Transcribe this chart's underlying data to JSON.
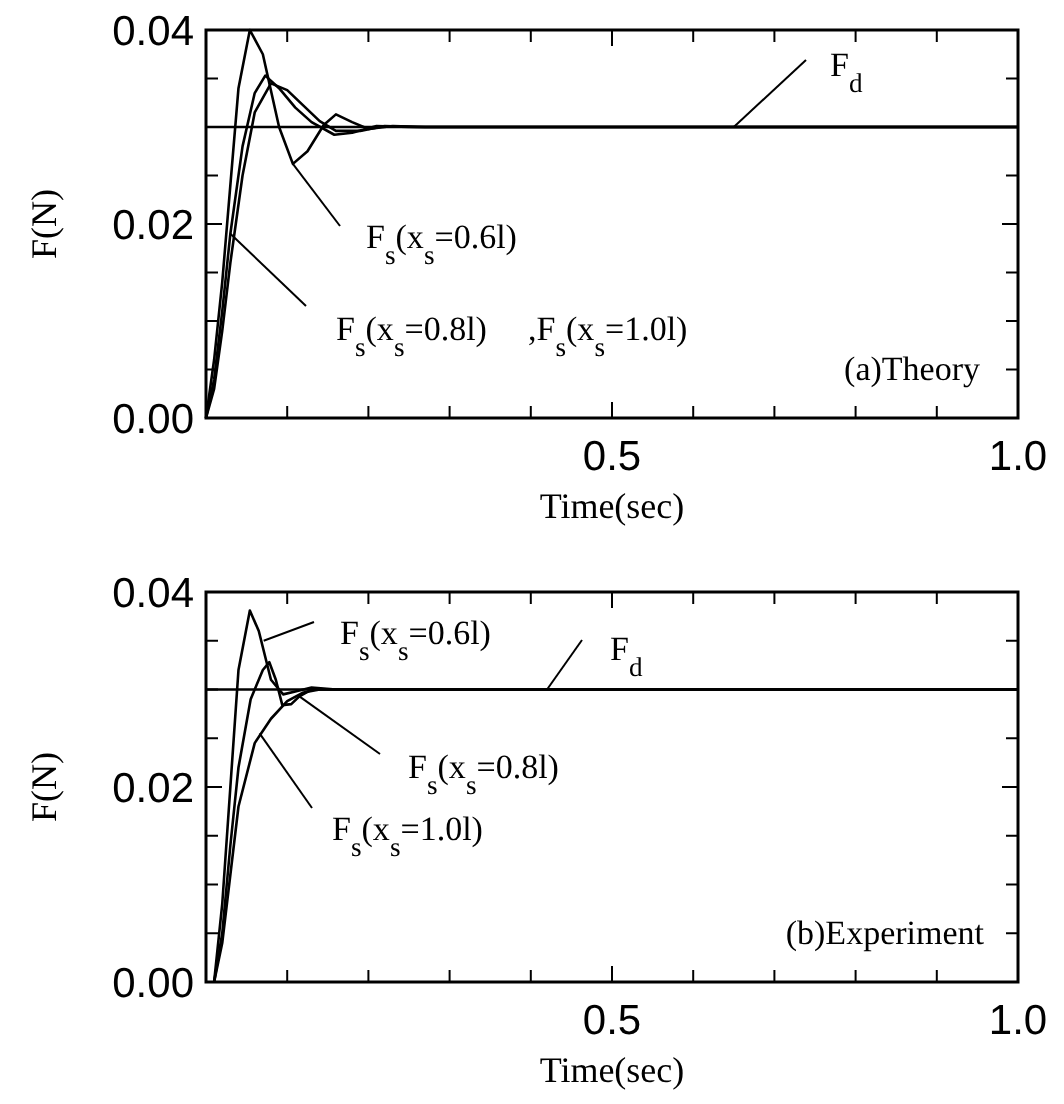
{
  "chart_data": [
    {
      "type": "line",
      "xlabel": "Time(sec)",
      "ylabel": "F(N)",
      "xlim": [
        0,
        1.0
      ],
      "ylim": [
        0,
        0.04
      ],
      "xticks": [
        {
          "value": 0,
          "label": null
        },
        {
          "value": 0.1,
          "label": null
        },
        {
          "value": 0.2,
          "label": null
        },
        {
          "value": 0.3,
          "label": null
        },
        {
          "value": 0.4,
          "label": null
        },
        0.5,
        {
          "value": 0.6,
          "label": null
        },
        {
          "value": 0.7,
          "label": null
        },
        {
          "value": 0.8,
          "label": null
        },
        {
          "value": 0.9,
          "label": null
        },
        {
          "value": 1.0,
          "label": "1.0"
        }
      ],
      "yticks": [
        {
          "value": 0,
          "label": "0.00"
        },
        {
          "value": 0.005,
          "label": null
        },
        {
          "value": 0.01,
          "label": null
        },
        {
          "value": 0.015,
          "label": null
        },
        {
          "value": 0.02,
          "label": "0.02"
        },
        {
          "value": 0.025,
          "label": null
        },
        {
          "value": 0.03,
          "label": null
        },
        {
          "value": 0.035,
          "label": null
        },
        {
          "value": 0.04,
          "label": "0.04"
        }
      ],
      "grid": false,
      "marker": "none",
      "line_style": "solid",
      "series": [
        {
          "color": "#000000",
          "x": [
            0,
            0.01,
            0.02,
            0.03,
            0.04,
            0.054,
            0.07,
            0.09,
            0.107,
            0.125,
            0.145,
            0.16,
            0.18,
            0.2,
            0.23,
            0.27,
            1.0
          ],
          "values": [
            0,
            0.006,
            0.014,
            0.024,
            0.034,
            0.04,
            0.0375,
            0.03,
            0.0262,
            0.0275,
            0.0302,
            0.0313,
            0.0305,
            0.0298,
            0.0301,
            0.03,
            0.03
          ]
        },
        {
          "color": "#000000",
          "x": [
            0,
            0.01,
            0.02,
            0.03,
            0.045,
            0.06,
            0.073,
            0.09,
            0.11,
            0.13,
            0.158,
            0.18,
            0.21,
            0.25,
            0.3,
            1.0
          ],
          "values": [
            0,
            0.004,
            0.011,
            0.019,
            0.028,
            0.0335,
            0.0353,
            0.034,
            0.032,
            0.0305,
            0.0292,
            0.0294,
            0.0301,
            0.03,
            0.03,
            0.03
          ]
        },
        {
          "color": "#000000",
          "x": [
            0,
            0.01,
            0.02,
            0.03,
            0.045,
            0.06,
            0.08,
            0.1,
            0.12,
            0.14,
            0.16,
            0.19,
            0.22,
            0.26,
            0.3,
            1.0
          ],
          "values": [
            0,
            0.003,
            0.009,
            0.016,
            0.025,
            0.0315,
            0.0345,
            0.0338,
            0.0322,
            0.0306,
            0.0296,
            0.0296,
            0.0301,
            0.03,
            0.03,
            0.03
          ]
        }
      ],
      "ref_lines": [
        {
          "axis": "y",
          "value": 0.03,
          "label": "F$_{d}$",
          "color": "#000000"
        }
      ],
      "annotations": [
        {
          "text": "F$_{s}$(x$_{s}$=0.6l)",
          "x": 0.107,
          "y": 0.0262
        },
        {
          "text": "F$_{s}$(x$_{s}$=0.8l)",
          "x": 0.03,
          "y": 0.019
        },
        ",F$_{s}$(x$_{s}$=1.0l)",
        "(a)Theory"
      ]
    },
    {
      "type": "line",
      "xlabel": "Time(sec)",
      "ylabel": "F(N)",
      "xlim": [
        0,
        1.0
      ],
      "ylim": [
        0,
        0.04
      ],
      "xticks": [
        {
          "value": 0,
          "label": null
        },
        {
          "value": 0.1,
          "label": null
        },
        {
          "value": 0.2,
          "label": null
        },
        {
          "value": 0.3,
          "label": null
        },
        {
          "value": 0.4,
          "label": null
        },
        0.5,
        {
          "value": 0.6,
          "label": null
        },
        {
          "value": 0.7,
          "label": null
        },
        {
          "value": 0.8,
          "label": null
        },
        {
          "value": 0.9,
          "label": null
        },
        {
          "value": 1.0,
          "label": "1.0"
        }
      ],
      "yticks": [
        {
          "value": 0,
          "label": "0.00"
        },
        {
          "value": 0.005,
          "label": null
        },
        {
          "value": 0.01,
          "label": null
        },
        {
          "value": 0.015,
          "label": null
        },
        {
          "value": 0.02,
          "label": "0.02"
        },
        {
          "value": 0.025,
          "label": null
        },
        {
          "value": 0.03,
          "label": null
        },
        {
          "value": 0.035,
          "label": null
        },
        {
          "value": 0.04,
          "label": "0.04"
        }
      ],
      "grid": false,
      "marker": "none",
      "line_style": "solid",
      "series": [
        {
          "color": "#000000",
          "x": [
            0.01,
            0.02,
            0.03,
            0.04,
            0.054,
            0.065,
            0.08,
            0.095,
            0.11,
            0.13,
            0.16,
            1.0
          ],
          "values": [
            0,
            0.008,
            0.02,
            0.032,
            0.0381,
            0.036,
            0.031,
            0.0295,
            0.0298,
            0.0302,
            0.03,
            0.03
          ]
        },
        {
          "color": "#000000",
          "x": [
            0.01,
            0.02,
            0.03,
            0.04,
            0.055,
            0.07,
            0.078,
            0.086,
            0.094,
            0.105,
            0.115,
            0.13,
            1.0
          ],
          "values": [
            0,
            0.005,
            0.014,
            0.022,
            0.029,
            0.032,
            0.0328,
            0.031,
            0.0284,
            0.0285,
            0.0293,
            0.03,
            0.03
          ]
        },
        {
          "color": "#000000",
          "x": [
            0.01,
            0.02,
            0.03,
            0.04,
            0.06,
            0.08,
            0.1,
            0.12,
            0.14,
            1.0
          ],
          "values": [
            0,
            0.004,
            0.011,
            0.018,
            0.0245,
            0.027,
            0.0288,
            0.0297,
            0.03,
            0.03
          ]
        }
      ],
      "ref_lines": [
        {
          "axis": "y",
          "value": 0.03,
          "label": "F$_{d}$",
          "color": "#000000"
        }
      ],
      "annotations": [
        {
          "text": "F$_{s}$(x$_{s}$=0.6l)",
          "x": 0.071,
          "y": 0.035
        },
        {
          "text": "F$_{s}$(x$_{s}$=0.8l)",
          "x": 0.115,
          "y": 0.0293
        },
        {
          "text": "F$_{s}$(x$_{s}$=1.0l)",
          "x": 0.066,
          "y": 0.0255
        },
        "(b)Experiment"
      ]
    }
  ]
}
